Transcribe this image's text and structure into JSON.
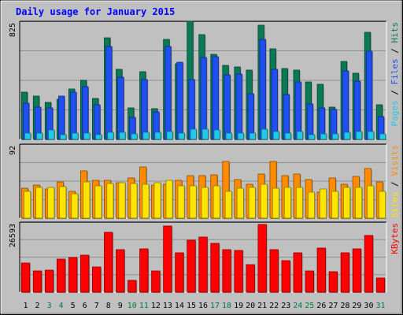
{
  "chart_data": [
    {
      "type": "bar",
      "title": "Daily usage for January 2015",
      "ymax_label": "825",
      "ylim": [
        0,
        825
      ],
      "categories": [
        "1",
        "2",
        "3",
        "4",
        "5",
        "6",
        "7",
        "8",
        "9",
        "10",
        "11",
        "12",
        "13",
        "14",
        "15",
        "16",
        "17",
        "18",
        "19",
        "20",
        "21",
        "22",
        "23",
        "24",
        "25",
        "26",
        "27",
        "28",
        "29",
        "30",
        "31"
      ],
      "weekend_days": [
        "3",
        "4",
        "10",
        "11",
        "17",
        "18",
        "24",
        "25",
        "31"
      ],
      "grid": true,
      "legend": [
        "Pages",
        "Files",
        "Hits"
      ],
      "series": [
        {
          "name": "Hits",
          "color": "#0a7a56",
          "values": [
            331,
            304,
            256,
            280,
            352,
            412,
            285,
            707,
            488,
            222,
            474,
            217,
            700,
            530,
            825,
            730,
            592,
            518,
            508,
            483,
            795,
            630,
            495,
            485,
            400,
            385,
            226,
            545,
            460,
            750,
            243
          ]
        },
        {
          "name": "Files",
          "color": "#1f4ff0",
          "values": [
            255,
            225,
            222,
            305,
            332,
            368,
            242,
            647,
            437,
            155,
            418,
            193,
            650,
            537,
            420,
            570,
            580,
            450,
            455,
            320,
            701,
            488,
            315,
            400,
            245,
            218,
            210,
            477,
            407,
            617,
            162
          ]
        },
        {
          "name": "Pages",
          "color": "#22c8e6",
          "values": [
            45,
            42,
            65,
            32,
            45,
            45,
            31,
            52,
            52,
            39,
            52,
            52,
            53,
            43,
            69,
            69,
            65,
            45,
            45,
            45,
            69,
            55,
            45,
            55,
            33,
            39,
            39,
            52,
            55,
            55,
            38
          ]
        }
      ]
    },
    {
      "type": "bar",
      "ymax_label": "92",
      "ylim": [
        0,
        92
      ],
      "grid": true,
      "legend": [
        "Sites",
        "Visits"
      ],
      "series": [
        {
          "name": "Visits",
          "color": "#ff8c00",
          "values": [
            37,
            41,
            36,
            45,
            33,
            59,
            47,
            47,
            44,
            50,
            64,
            41,
            42,
            47,
            53,
            53,
            54,
            70,
            48,
            42,
            55,
            70,
            53,
            55,
            48,
            32,
            50,
            42,
            52,
            62,
            45
          ]
        },
        {
          "name": "Sites",
          "color": "#ffe400",
          "values": [
            33,
            38,
            38,
            39,
            30,
            45,
            40,
            43,
            44,
            43,
            42,
            44,
            47,
            40,
            40,
            38,
            40,
            33,
            37,
            38,
            42,
            37,
            38,
            38,
            32,
            36,
            33,
            38,
            38,
            40,
            33
          ]
        }
      ]
    },
    {
      "type": "bar",
      "ymax_label": "26593",
      "ylim": [
        0,
        26593
      ],
      "grid": true,
      "legend": [
        "KBytes"
      ],
      "series": [
        {
          "name": "KBytes",
          "color": "#ff0000",
          "values": [
            11000,
            8200,
            8500,
            12500,
            13000,
            14000,
            9600,
            22800,
            16000,
            4500,
            16400,
            8000,
            25200,
            14800,
            19700,
            21000,
            18400,
            16200,
            15800,
            10500,
            25600,
            16200,
            12000,
            14800,
            8200,
            16700,
            7900,
            14900,
            16400,
            21600,
            5500
          ]
        }
      ]
    }
  ]
}
